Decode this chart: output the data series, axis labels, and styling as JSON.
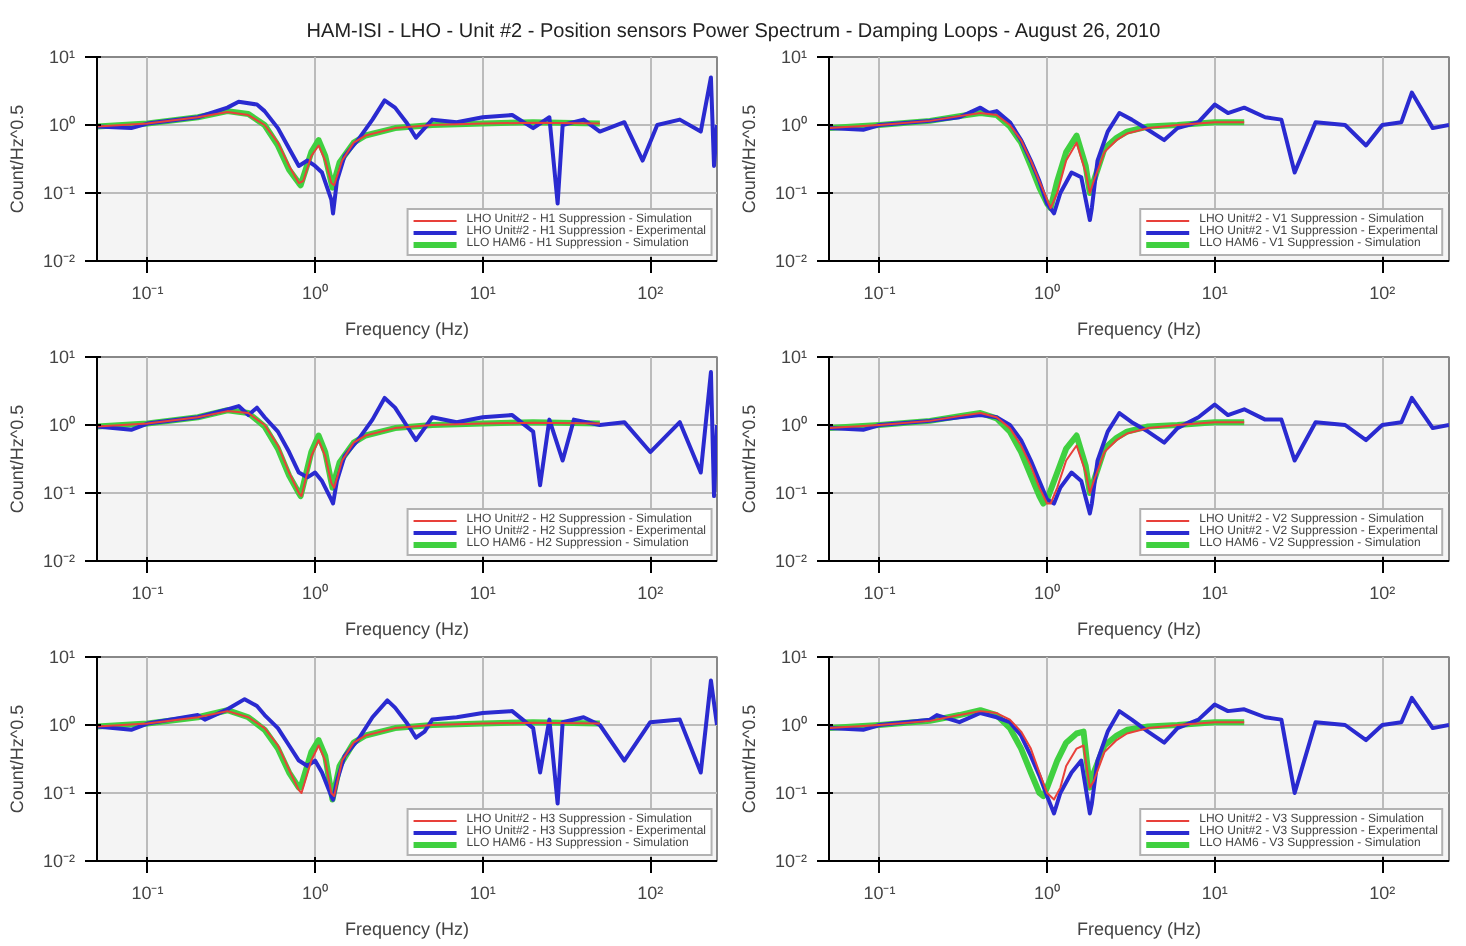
{
  "chart_data": [
    {
      "type": "line",
      "title": "HAM-ISI - LHO - Unit #2 - Position sensors Power Spectrum - Damping Loops - August 26, 2010",
      "xlabel": "Frequency (Hz)",
      "ylabel": "Count/Hz^0.5",
      "log": "xy",
      "grid": true,
      "legend": "bottom right",
      "marker": "none",
      "line_style": "solid",
      "xlim": [
        0.05,
        250
      ],
      "ylim": [
        0.01,
        10
      ],
      "xticks": [
        {
          "value": 0.1,
          "label": "10⁻¹"
        },
        {
          "value": 1,
          "label": "10⁰"
        },
        {
          "value": 10,
          "label": "10¹"
        },
        {
          "value": 100,
          "label": "10²"
        }
      ],
      "yticks": [
        {
          "value": 0.01,
          "label": "10⁻²"
        },
        {
          "value": 0.1,
          "label": "10⁻¹"
        },
        {
          "value": 1,
          "label": "10⁰"
        },
        {
          "value": 10,
          "label": "10¹"
        }
      ],
      "series": [
        {
          "name": "LHO Unit#2 - H1 Suppression - Simulation",
          "color": "#e8403a",
          "x": [
            0.05,
            0.1,
            0.2,
            0.3,
            0.4,
            0.5,
            0.6,
            0.7,
            0.8,
            0.85,
            0.95,
            1.05,
            1.15,
            1.25,
            1.3,
            1.45,
            1.7,
            2,
            3,
            5,
            10,
            20,
            50
          ],
          "values": [
            0.95,
            1.05,
            1.3,
            1.55,
            1.4,
            1.0,
            0.55,
            0.25,
            0.14,
            0.15,
            0.35,
            0.5,
            0.3,
            0.14,
            0.13,
            0.3,
            0.55,
            0.7,
            0.9,
            1.0,
            1.05,
            1.08,
            1.05
          ]
        },
        {
          "name": "LHO Unit#2 - H1 Suppression - Experimental",
          "color": "#2a2ad0",
          "x": [
            0.05,
            0.08,
            0.1,
            0.2,
            0.3,
            0.35,
            0.45,
            0.5,
            0.6,
            0.7,
            0.8,
            0.9,
            1.0,
            1.1,
            1.25,
            1.28,
            1.35,
            1.5,
            1.8,
            2.2,
            2.6,
            3,
            3.5,
            4,
            4.5,
            5,
            7,
            10,
            15,
            20,
            25,
            28,
            30,
            40,
            50,
            70,
            90,
            110,
            150,
            200,
            230,
            240,
            250
          ],
          "values": [
            0.95,
            0.9,
            1.05,
            1.3,
            1.8,
            2.2,
            2.0,
            1.6,
            0.9,
            0.45,
            0.25,
            0.3,
            0.25,
            0.2,
            0.08,
            0.05,
            0.15,
            0.35,
            0.6,
            1.2,
            2.3,
            1.8,
            1.1,
            0.65,
            0.9,
            1.2,
            1.1,
            1.3,
            1.4,
            0.9,
            1.3,
            0.07,
            1.0,
            1.2,
            0.8,
            1.1,
            0.3,
            1.0,
            1.2,
            0.8,
            5.0,
            0.25,
            1.0
          ]
        },
        {
          "name": "LLO HAM6 - H1 Suppression - Simulation",
          "color": "#40d040",
          "x": [
            0.05,
            0.1,
            0.2,
            0.3,
            0.4,
            0.5,
            0.6,
            0.7,
            0.8,
            0.82,
            0.95,
            1.05,
            1.15,
            1.27,
            1.4,
            1.7,
            2,
            3,
            5,
            10,
            20,
            50
          ],
          "values": [
            0.95,
            1.05,
            1.3,
            1.6,
            1.45,
            1.0,
            0.5,
            0.22,
            0.14,
            0.13,
            0.4,
            0.6,
            0.35,
            0.12,
            0.28,
            0.55,
            0.7,
            0.9,
            1.0,
            1.05,
            1.1,
            1.05
          ]
        }
      ]
    },
    {
      "type": "line",
      "xlabel": "Frequency (Hz)",
      "ylabel": "Count/Hz^0.5",
      "log": "xy",
      "grid": true,
      "legend": "bottom right",
      "marker": "none",
      "line_style": "solid",
      "xlim": [
        0.05,
        250
      ],
      "ylim": [
        0.01,
        10
      ],
      "xticks": [
        {
          "value": 0.1,
          "label": "10⁻¹"
        },
        {
          "value": 1,
          "label": "10⁰"
        },
        {
          "value": 10,
          "label": "10¹"
        },
        {
          "value": 100,
          "label": "10²"
        }
      ],
      "yticks": [
        {
          "value": 0.01,
          "label": "10⁻²"
        },
        {
          "value": 0.1,
          "label": "10⁻¹"
        },
        {
          "value": 1,
          "label": "10⁰"
        },
        {
          "value": 10,
          "label": "10¹"
        }
      ],
      "series": [
        {
          "name": "LHO Unit#2 - V1 Suppression - Simulation",
          "color": "#e8403a",
          "x": [
            0.05,
            0.1,
            0.2,
            0.3,
            0.4,
            0.5,
            0.6,
            0.7,
            0.8,
            0.9,
            1.0,
            1.05,
            1.15,
            1.3,
            1.5,
            1.7,
            1.8,
            1.9,
            2.2,
            2.6,
            3,
            4,
            6,
            10,
            15
          ],
          "values": [
            0.9,
            1.0,
            1.15,
            1.35,
            1.5,
            1.4,
            1.0,
            0.6,
            0.3,
            0.15,
            0.08,
            0.06,
            0.1,
            0.3,
            0.55,
            0.2,
            0.1,
            0.15,
            0.4,
            0.6,
            0.75,
            0.9,
            1.0,
            1.1,
            1.1
          ]
        },
        {
          "name": "LHO Unit#2 - V1 Suppression - Experimental",
          "color": "#2a2ad0",
          "x": [
            0.05,
            0.08,
            0.1,
            0.2,
            0.3,
            0.4,
            0.45,
            0.5,
            0.6,
            0.7,
            0.8,
            0.9,
            1.0,
            1.1,
            1.2,
            1.4,
            1.6,
            1.8,
            1.85,
            2.0,
            2.3,
            2.7,
            3.2,
            4,
            5,
            6,
            8,
            10,
            12,
            15,
            20,
            25,
            30,
            40,
            60,
            80,
            100,
            130,
            150,
            200,
            250
          ],
          "values": [
            0.9,
            0.85,
            1.0,
            1.15,
            1.3,
            1.8,
            1.5,
            1.6,
            1.1,
            0.6,
            0.3,
            0.15,
            0.07,
            0.05,
            0.1,
            0.2,
            0.17,
            0.04,
            0.06,
            0.3,
            0.8,
            1.5,
            1.2,
            0.85,
            0.6,
            0.9,
            1.1,
            2.0,
            1.5,
            1.8,
            1.3,
            1.2,
            0.2,
            1.1,
            1.0,
            0.5,
            1.0,
            1.1,
            3.0,
            0.9,
            1.0
          ]
        },
        {
          "name": "LLO HAM6 - V1 Suppression - Simulation",
          "color": "#40d040",
          "x": [
            0.05,
            0.1,
            0.2,
            0.3,
            0.4,
            0.5,
            0.6,
            0.7,
            0.8,
            0.9,
            1.0,
            1.05,
            1.15,
            1.3,
            1.5,
            1.7,
            1.8,
            1.9,
            2.2,
            2.6,
            3,
            4,
            6,
            10,
            15
          ],
          "values": [
            0.9,
            1.0,
            1.15,
            1.35,
            1.5,
            1.4,
            0.95,
            0.55,
            0.25,
            0.12,
            0.07,
            0.06,
            0.15,
            0.4,
            0.7,
            0.25,
            0.1,
            0.15,
            0.45,
            0.65,
            0.8,
            0.95,
            1.0,
            1.1,
            1.1
          ]
        }
      ]
    },
    {
      "type": "line",
      "xlabel": "Frequency (Hz)",
      "ylabel": "Count/Hz^0.5",
      "log": "xy",
      "grid": true,
      "legend": "bottom right",
      "marker": "none",
      "line_style": "solid",
      "xlim": [
        0.05,
        250
      ],
      "ylim": [
        0.01,
        10
      ],
      "xticks": [
        {
          "value": 0.1,
          "label": "10⁻¹"
        },
        {
          "value": 1,
          "label": "10⁰"
        },
        {
          "value": 10,
          "label": "10¹"
        },
        {
          "value": 100,
          "label": "10²"
        }
      ],
      "yticks": [
        {
          "value": 0.01,
          "label": "10⁻²"
        },
        {
          "value": 0.1,
          "label": "10⁻¹"
        },
        {
          "value": 1,
          "label": "10⁰"
        },
        {
          "value": 10,
          "label": "10¹"
        }
      ],
      "series": [
        {
          "name": "LHO Unit#2 - H2 Suppression - Simulation",
          "color": "#e8403a",
          "x": [
            0.05,
            0.1,
            0.2,
            0.3,
            0.4,
            0.5,
            0.6,
            0.7,
            0.8,
            0.83,
            0.95,
            1.05,
            1.15,
            1.25,
            1.3,
            1.45,
            1.7,
            2,
            3,
            5,
            10,
            20,
            50
          ],
          "values": [
            0.95,
            1.05,
            1.3,
            1.6,
            1.5,
            1.0,
            0.5,
            0.2,
            0.1,
            0.09,
            0.35,
            0.6,
            0.35,
            0.14,
            0.12,
            0.3,
            0.55,
            0.7,
            0.9,
            1.0,
            1.05,
            1.08,
            1.05
          ]
        },
        {
          "name": "LHO Unit#2 - H2 Suppression - Experimental",
          "color": "#2a2ad0",
          "x": [
            0.05,
            0.08,
            0.1,
            0.2,
            0.3,
            0.35,
            0.4,
            0.45,
            0.5,
            0.6,
            0.7,
            0.8,
            0.9,
            1.0,
            1.1,
            1.25,
            1.28,
            1.35,
            1.5,
            1.8,
            2.2,
            2.6,
            3,
            3.5,
            4,
            4.5,
            5,
            7,
            10,
            15,
            20,
            22,
            25,
            30,
            35,
            50,
            70,
            100,
            150,
            200,
            230,
            240,
            250
          ],
          "values": [
            0.95,
            0.85,
            1.05,
            1.3,
            1.7,
            1.9,
            1.4,
            1.8,
            1.3,
            0.8,
            0.4,
            0.2,
            0.17,
            0.2,
            0.15,
            0.08,
            0.07,
            0.15,
            0.35,
            0.6,
            1.2,
            2.5,
            1.8,
            1.0,
            0.6,
            0.9,
            1.3,
            1.1,
            1.3,
            1.4,
            0.8,
            0.13,
            1.2,
            0.3,
            1.2,
            1.0,
            1.1,
            0.4,
            1.1,
            0.2,
            6.0,
            0.09,
            1.0
          ]
        },
        {
          "name": "LLO HAM6 - H2 Suppression - Simulation",
          "color": "#40d040",
          "x": [
            0.05,
            0.1,
            0.2,
            0.3,
            0.4,
            0.5,
            0.6,
            0.7,
            0.8,
            0.82,
            0.95,
            1.05,
            1.15,
            1.27,
            1.4,
            1.7,
            2,
            3,
            5,
            10,
            20,
            50
          ],
          "values": [
            0.95,
            1.05,
            1.3,
            1.65,
            1.5,
            0.95,
            0.45,
            0.18,
            0.1,
            0.09,
            0.4,
            0.7,
            0.4,
            0.12,
            0.28,
            0.55,
            0.7,
            0.9,
            1.0,
            1.05,
            1.1,
            1.05
          ]
        }
      ]
    },
    {
      "type": "line",
      "xlabel": "Frequency (Hz)",
      "ylabel": "Count/Hz^0.5",
      "log": "xy",
      "grid": true,
      "legend": "bottom right",
      "marker": "none",
      "line_style": "solid",
      "xlim": [
        0.05,
        250
      ],
      "ylim": [
        0.01,
        10
      ],
      "xticks": [
        {
          "value": 0.1,
          "label": "10⁻¹"
        },
        {
          "value": 1,
          "label": "10⁰"
        },
        {
          "value": 10,
          "label": "10¹"
        },
        {
          "value": 100,
          "label": "10²"
        }
      ],
      "yticks": [
        {
          "value": 0.01,
          "label": "10⁻²"
        },
        {
          "value": 0.1,
          "label": "10⁻¹"
        },
        {
          "value": 1,
          "label": "10⁰"
        },
        {
          "value": 10,
          "label": "10¹"
        }
      ],
      "series": [
        {
          "name": "LHO Unit#2 - V2 Suppression - Simulation",
          "color": "#e8403a",
          "x": [
            0.05,
            0.1,
            0.2,
            0.3,
            0.4,
            0.5,
            0.6,
            0.7,
            0.8,
            0.9,
            1.0,
            1.05,
            1.15,
            1.3,
            1.5,
            1.7,
            1.8,
            1.9,
            2.2,
            2.6,
            3,
            4,
            6,
            10,
            15
          ],
          "values": [
            0.9,
            1.0,
            1.15,
            1.35,
            1.5,
            1.3,
            0.9,
            0.5,
            0.25,
            0.12,
            0.07,
            0.07,
            0.12,
            0.3,
            0.5,
            0.2,
            0.1,
            0.15,
            0.4,
            0.6,
            0.75,
            0.9,
            1.0,
            1.1,
            1.1
          ]
        },
        {
          "name": "LHO Unit#2 - V2 Suppression - Experimental",
          "color": "#2a2ad0",
          "x": [
            0.05,
            0.08,
            0.1,
            0.2,
            0.3,
            0.4,
            0.5,
            0.6,
            0.7,
            0.8,
            0.9,
            1.0,
            1.1,
            1.2,
            1.4,
            1.6,
            1.8,
            1.85,
            2.0,
            2.3,
            2.7,
            3.2,
            4,
            5,
            6,
            8,
            10,
            12,
            15,
            20,
            25,
            30,
            40,
            60,
            80,
            100,
            130,
            150,
            200,
            250
          ],
          "values": [
            0.9,
            0.85,
            1.0,
            1.15,
            1.3,
            1.4,
            1.3,
            1.0,
            0.6,
            0.3,
            0.15,
            0.08,
            0.07,
            0.12,
            0.2,
            0.15,
            0.05,
            0.07,
            0.3,
            0.8,
            1.5,
            1.1,
            0.8,
            0.55,
            0.9,
            1.3,
            2.0,
            1.4,
            1.7,
            1.2,
            1.2,
            0.3,
            1.1,
            1.0,
            0.6,
            1.0,
            1.1,
            2.5,
            0.9,
            1.0
          ]
        },
        {
          "name": "LLO HAM6 - V2 Suppression - Simulation",
          "color": "#40d040",
          "x": [
            0.05,
            0.1,
            0.2,
            0.3,
            0.4,
            0.5,
            0.6,
            0.7,
            0.8,
            0.9,
            0.95,
            1.0,
            1.15,
            1.3,
            1.5,
            1.7,
            1.8,
            1.9,
            2.2,
            2.6,
            3,
            4,
            6,
            10,
            15
          ],
          "values": [
            0.9,
            1.0,
            1.15,
            1.35,
            1.5,
            1.25,
            0.8,
            0.4,
            0.18,
            0.09,
            0.07,
            0.08,
            0.2,
            0.45,
            0.7,
            0.25,
            0.1,
            0.15,
            0.45,
            0.65,
            0.8,
            0.95,
            1.0,
            1.1,
            1.1
          ]
        }
      ]
    },
    {
      "type": "line",
      "xlabel": "Frequency (Hz)",
      "ylabel": "Count/Hz^0.5",
      "log": "xy",
      "grid": true,
      "legend": "bottom right",
      "marker": "none",
      "line_style": "solid",
      "xlim": [
        0.05,
        250
      ],
      "ylim": [
        0.01,
        10
      ],
      "xticks": [
        {
          "value": 0.1,
          "label": "10⁻¹"
        },
        {
          "value": 1,
          "label": "10⁰"
        },
        {
          "value": 10,
          "label": "10¹"
        },
        {
          "value": 100,
          "label": "10²"
        }
      ],
      "yticks": [
        {
          "value": 0.01,
          "label": "10⁻²"
        },
        {
          "value": 0.1,
          "label": "10⁻¹"
        },
        {
          "value": 1,
          "label": "10⁰"
        },
        {
          "value": 10,
          "label": "10¹"
        }
      ],
      "series": [
        {
          "name": "LHO Unit#2 - H3 Suppression - Simulation",
          "color": "#e8403a",
          "x": [
            0.05,
            0.1,
            0.2,
            0.3,
            0.4,
            0.5,
            0.6,
            0.7,
            0.8,
            0.83,
            0.95,
            1.05,
            1.15,
            1.25,
            1.3,
            1.45,
            1.7,
            2,
            3,
            5,
            10,
            20,
            50
          ],
          "values": [
            0.95,
            1.05,
            1.3,
            1.6,
            1.3,
            0.9,
            0.5,
            0.22,
            0.11,
            0.1,
            0.3,
            0.5,
            0.3,
            0.1,
            0.09,
            0.3,
            0.55,
            0.7,
            0.9,
            1.0,
            1.05,
            1.08,
            1.05
          ]
        },
        {
          "name": "LHO Unit#2 - H3 Suppression - Experimental",
          "color": "#2a2ad0",
          "x": [
            0.05,
            0.08,
            0.1,
            0.2,
            0.22,
            0.3,
            0.38,
            0.45,
            0.5,
            0.6,
            0.7,
            0.8,
            0.9,
            1.0,
            1.1,
            1.25,
            1.28,
            1.35,
            1.5,
            1.8,
            2.2,
            2.7,
            3,
            3.5,
            4,
            4.5,
            5,
            7,
            10,
            15,
            20,
            22,
            25,
            28,
            30,
            40,
            50,
            70,
            100,
            150,
            200,
            230,
            250
          ],
          "values": [
            0.95,
            0.85,
            1.05,
            1.4,
            1.2,
            1.7,
            2.4,
            1.9,
            1.4,
            0.9,
            0.5,
            0.3,
            0.25,
            0.3,
            0.2,
            0.09,
            0.08,
            0.15,
            0.35,
            0.6,
            1.3,
            2.3,
            1.8,
            1.1,
            0.65,
            0.8,
            1.2,
            1.3,
            1.5,
            1.6,
            0.9,
            0.2,
            1.2,
            0.07,
            1.1,
            1.3,
            1.0,
            0.3,
            1.1,
            1.2,
            0.2,
            4.5,
            1.0
          ]
        },
        {
          "name": "LLO HAM6 - H3 Suppression - Simulation",
          "color": "#40d040",
          "x": [
            0.05,
            0.1,
            0.2,
            0.3,
            0.4,
            0.5,
            0.6,
            0.7,
            0.8,
            0.82,
            0.95,
            1.05,
            1.15,
            1.27,
            1.4,
            1.7,
            2,
            3,
            5,
            10,
            20,
            50
          ],
          "values": [
            0.95,
            1.05,
            1.3,
            1.65,
            1.3,
            0.85,
            0.45,
            0.2,
            0.12,
            0.12,
            0.4,
            0.6,
            0.35,
            0.08,
            0.25,
            0.55,
            0.7,
            0.9,
            1.0,
            1.05,
            1.1,
            1.05
          ]
        }
      ]
    },
    {
      "type": "line",
      "xlabel": "Frequency (Hz)",
      "ylabel": "Count/Hz^0.5",
      "log": "xy",
      "grid": true,
      "legend": "bottom right",
      "marker": "none",
      "line_style": "solid",
      "xlim": [
        0.05,
        250
      ],
      "ylim": [
        0.01,
        10
      ],
      "xticks": [
        {
          "value": 0.1,
          "label": "10⁻¹"
        },
        {
          "value": 1,
          "label": "10⁰"
        },
        {
          "value": 10,
          "label": "10¹"
        },
        {
          "value": 100,
          "label": "10²"
        }
      ],
      "yticks": [
        {
          "value": 0.01,
          "label": "10⁻²"
        },
        {
          "value": 0.1,
          "label": "10⁻¹"
        },
        {
          "value": 1,
          "label": "10⁰"
        },
        {
          "value": 10,
          "label": "10¹"
        }
      ],
      "series": [
        {
          "name": "LHO Unit#2 - V3 Suppression - Simulation",
          "color": "#e8403a",
          "x": [
            0.05,
            0.1,
            0.2,
            0.3,
            0.4,
            0.5,
            0.6,
            0.7,
            0.8,
            0.9,
            1.0,
            1.1,
            1.2,
            1.3,
            1.5,
            1.65,
            1.8,
            1.9,
            2.2,
            2.6,
            3,
            4,
            6,
            10,
            15
          ],
          "values": [
            0.9,
            1.0,
            1.15,
            1.4,
            1.6,
            1.5,
            1.2,
            0.8,
            0.45,
            0.2,
            0.1,
            0.08,
            0.12,
            0.25,
            0.45,
            0.5,
            0.12,
            0.15,
            0.4,
            0.6,
            0.75,
            0.9,
            1.0,
            1.1,
            1.1
          ]
        },
        {
          "name": "LHO Unit#2 - V3 Suppression - Experimental",
          "color": "#2a2ad0",
          "x": [
            0.05,
            0.08,
            0.1,
            0.2,
            0.22,
            0.3,
            0.4,
            0.5,
            0.6,
            0.7,
            0.8,
            0.9,
            1.0,
            1.1,
            1.2,
            1.4,
            1.6,
            1.8,
            1.85,
            2.0,
            2.3,
            2.7,
            3.2,
            4,
            5,
            6,
            8,
            10,
            12,
            15,
            20,
            25,
            30,
            40,
            60,
            80,
            100,
            130,
            150,
            200,
            250
          ],
          "values": [
            0.9,
            0.85,
            1.0,
            1.2,
            1.4,
            1.1,
            1.5,
            1.3,
            1.1,
            0.7,
            0.35,
            0.18,
            0.09,
            0.05,
            0.1,
            0.2,
            0.3,
            0.05,
            0.07,
            0.3,
            0.8,
            1.6,
            1.2,
            0.8,
            0.55,
            0.9,
            1.2,
            2.0,
            1.6,
            1.7,
            1.3,
            1.2,
            0.1,
            1.1,
            1.0,
            0.6,
            1.0,
            1.1,
            2.5,
            0.9,
            1.0
          ]
        },
        {
          "name": "LLO HAM6 - V3 Suppression - Simulation",
          "color": "#40d040",
          "x": [
            0.05,
            0.1,
            0.2,
            0.3,
            0.4,
            0.5,
            0.6,
            0.7,
            0.8,
            0.9,
            0.95,
            1.0,
            1.15,
            1.3,
            1.5,
            1.65,
            1.8,
            1.9,
            2.2,
            2.6,
            3,
            4,
            6,
            10,
            15
          ],
          "values": [
            0.9,
            1.0,
            1.15,
            1.4,
            1.65,
            1.4,
            0.9,
            0.45,
            0.2,
            0.1,
            0.09,
            0.12,
            0.3,
            0.55,
            0.75,
            0.8,
            0.12,
            0.2,
            0.5,
            0.7,
            0.85,
            0.95,
            1.0,
            1.1,
            1.1
          ]
        }
      ]
    }
  ]
}
